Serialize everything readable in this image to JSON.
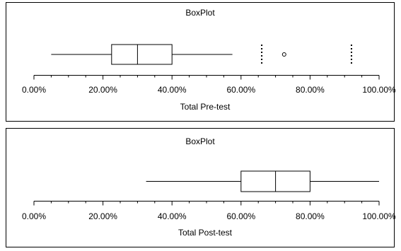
{
  "chart_data": [
    {
      "type": "box",
      "title": "BoxPlot",
      "xlabel": "Total Pre-test",
      "x_range": [
        0,
        100
      ],
      "x_tick_values": [
        0,
        20,
        40,
        60,
        80,
        100
      ],
      "x_tick_labels": [
        "0.00%",
        "20.00%",
        "40.00%",
        "60.00%",
        "80.00%",
        "100.00%"
      ],
      "minor_tick_step": 5,
      "whisker_low": 5,
      "q1": 22.5,
      "median": 30,
      "q3": 40,
      "whisker_high": 57.5,
      "fences": [
        66,
        92
      ],
      "outliers": [
        72.5
      ],
      "grid": false
    },
    {
      "type": "box",
      "title": "BoxPlot",
      "xlabel": "Total Post-test",
      "x_range": [
        0,
        100
      ],
      "x_tick_values": [
        0,
        20,
        40,
        60,
        80,
        100
      ],
      "x_tick_labels": [
        "0.00%",
        "20.00%",
        "40.00%",
        "60.00%",
        "80.00%",
        "100.00%"
      ],
      "minor_tick_step": 5,
      "whisker_low": 32.5,
      "q1": 60,
      "median": 70,
      "q3": 80,
      "whisker_high": 100,
      "fences": [],
      "outliers": [],
      "grid": false
    }
  ]
}
